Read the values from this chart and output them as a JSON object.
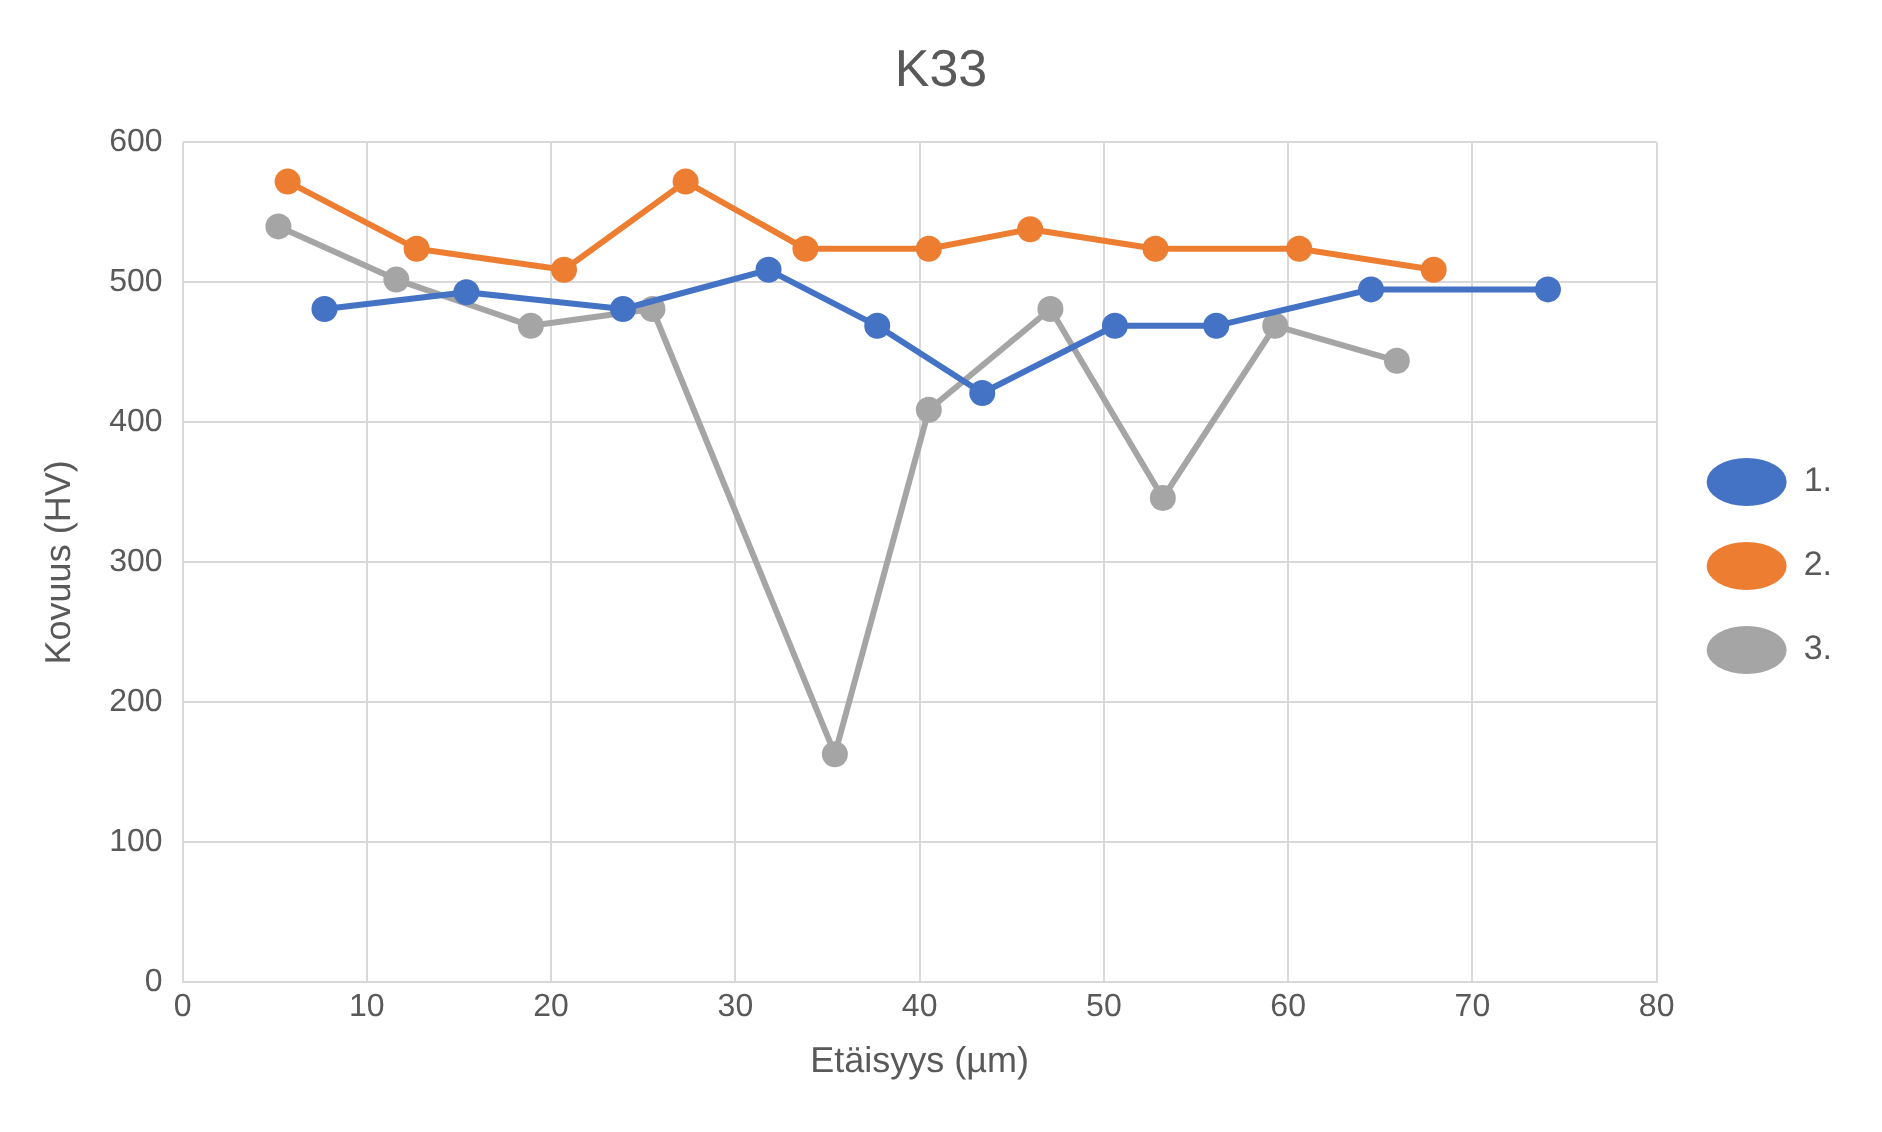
{
  "chart_data": {
    "type": "line",
    "title": "K33",
    "xlabel": "Etäisyys (µm)",
    "ylabel": "Kovuus (HV)",
    "xlim": [
      0,
      80
    ],
    "xticks": [
      0,
      10,
      20,
      30,
      40,
      50,
      60,
      70,
      80
    ],
    "ylim": [
      0,
      600
    ],
    "yticks": [
      0,
      100,
      200,
      300,
      400,
      500,
      600
    ],
    "grid": true,
    "legend": "right",
    "marker": "circle",
    "series": [
      {
        "name": "1.",
        "color": "#4472c4",
        "x": [
          7.7,
          15.4,
          23.9,
          31.8,
          37.7,
          43.4,
          50.6,
          56.1,
          64.5,
          74.1
        ],
        "values": [
          481,
          493,
          481,
          509,
          469,
          421,
          469,
          469,
          495,
          495
        ]
      },
      {
        "name": "2.",
        "color": "#ed7d31",
        "x": [
          5.7,
          12.7,
          20.7,
          27.3,
          33.8,
          40.5,
          46,
          52.8,
          60.6,
          67.9
        ],
        "values": [
          572,
          524,
          509,
          572,
          524,
          524,
          538,
          524,
          524,
          509
        ]
      },
      {
        "name": "3.",
        "color": "#a5a5a5",
        "x": [
          5.2,
          11.6,
          18.9,
          25.5,
          35.4,
          40.5,
          47.1,
          53.2,
          59.3,
          65.9
        ],
        "values": [
          540,
          502,
          469,
          481,
          163,
          409,
          481,
          346,
          469,
          444
        ]
      }
    ]
  }
}
